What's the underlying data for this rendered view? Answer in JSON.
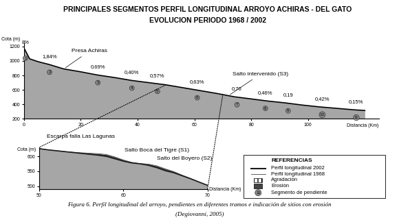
{
  "title": "PRINCIPALES SEGMENTOS PERFIL LONGITUDINAL ARROYO ACHIRAS - DEL GATO",
  "subtitle": "EVOLUCION PERIODO 1968 / 2002",
  "caption": "Figura 6. Perfil longitudinal del arroyo, pendientes en diferentes tramos e indicación de sitios con erosión",
  "source": "(Degiovanni, 2005)",
  "references": {
    "title": "REFERENCIAS",
    "items": [
      "Agradación",
      "Erosión",
      "Segmento de pendiente"
    ],
    "segment_symbol": "11"
  },
  "chart_data": [
    {
      "type": "area",
      "x_label": "Distancia (Km)",
      "y_label": "Cota (m)",
      "x": [
        0,
        2,
        5,
        9,
        14,
        20,
        26,
        32,
        38,
        44,
        50,
        56,
        62,
        68,
        74,
        80,
        86,
        92,
        98,
        104,
        110,
        116,
        120
      ],
      "values": [
        1180,
        1030,
        990,
        950,
        890,
        850,
        805,
        770,
        730,
        700,
        670,
        630,
        590,
        550,
        505,
        475,
        445,
        420,
        390,
        365,
        345,
        325,
        315
      ],
      "color": "#a6a6a6",
      "xlim": [
        0,
        125
      ],
      "ylim": [
        200,
        1250
      ],
      "xticks": [
        0,
        20,
        40,
        60,
        80,
        100
      ],
      "yticks": [
        200,
        400,
        600,
        800,
        1000,
        1200
      ],
      "segments": [
        {
          "number": 1,
          "x": 0.5,
          "slope": "8%"
        },
        {
          "number": 2,
          "x": 9,
          "slope": "1,84%"
        },
        {
          "number": 3,
          "x": 26,
          "slope": "0,69%"
        },
        {
          "number": 4,
          "x": 38,
          "slope": "0,40%"
        },
        {
          "number": 5,
          "x": 47,
          "slope": "0,57%"
        },
        {
          "number": 6,
          "x": 61,
          "slope": "0,63%"
        },
        {
          "number": 7,
          "x": 75,
          "slope": "0,70"
        },
        {
          "number": 8,
          "x": 85,
          "slope": "0,46%"
        },
        {
          "number": 9,
          "x": 93,
          "slope": "0,19"
        },
        {
          "number": 10,
          "x": 105,
          "slope": "0,42%"
        },
        {
          "number": 11,
          "x": 117,
          "slope": "0,15%"
        }
      ],
      "annotations": [
        {
          "text": "Presa Achiras",
          "x": 14
        },
        {
          "text": "Salto intervenido (S3)",
          "x": 72
        }
      ]
    },
    {
      "type": "line",
      "x_label": "Distancia (Km)",
      "y_label": "Cota (m)",
      "x": [
        50,
        51,
        53,
        55,
        57,
        58,
        59,
        60,
        61,
        62,
        63,
        64,
        65,
        66,
        67,
        68,
        69,
        70
      ],
      "series": [
        {
          "name": "Perfil longitudinal 2002",
          "color": "#1a1a1a",
          "values": [
            626,
            622,
            616,
            610,
            604,
            600,
            592,
            584,
            578,
            575,
            570,
            562,
            552,
            545,
            535,
            525,
            514,
            503
          ]
        },
        {
          "name": "Perfil longitudinal 1968",
          "color": "#444444",
          "values": [
            626,
            622,
            616,
            612,
            609,
            606,
            598,
            588,
            580,
            576,
            574,
            568,
            558,
            549,
            537,
            526,
            514,
            503
          ]
        }
      ],
      "xlim": [
        50,
        70
      ],
      "ylim": [
        490,
        630
      ],
      "xticks": [
        50,
        60,
        70
      ],
      "yticks": [
        500,
        550,
        600
      ],
      "annotations": [
        {
          "text": "Escarpa falla Las Lagunas",
          "x": 50
        },
        {
          "text": "Salto Boca del Tigre (S1)",
          "x": 59
        },
        {
          "text": "Salto del Boyero (S2)",
          "x": 63.5
        }
      ]
    }
  ]
}
